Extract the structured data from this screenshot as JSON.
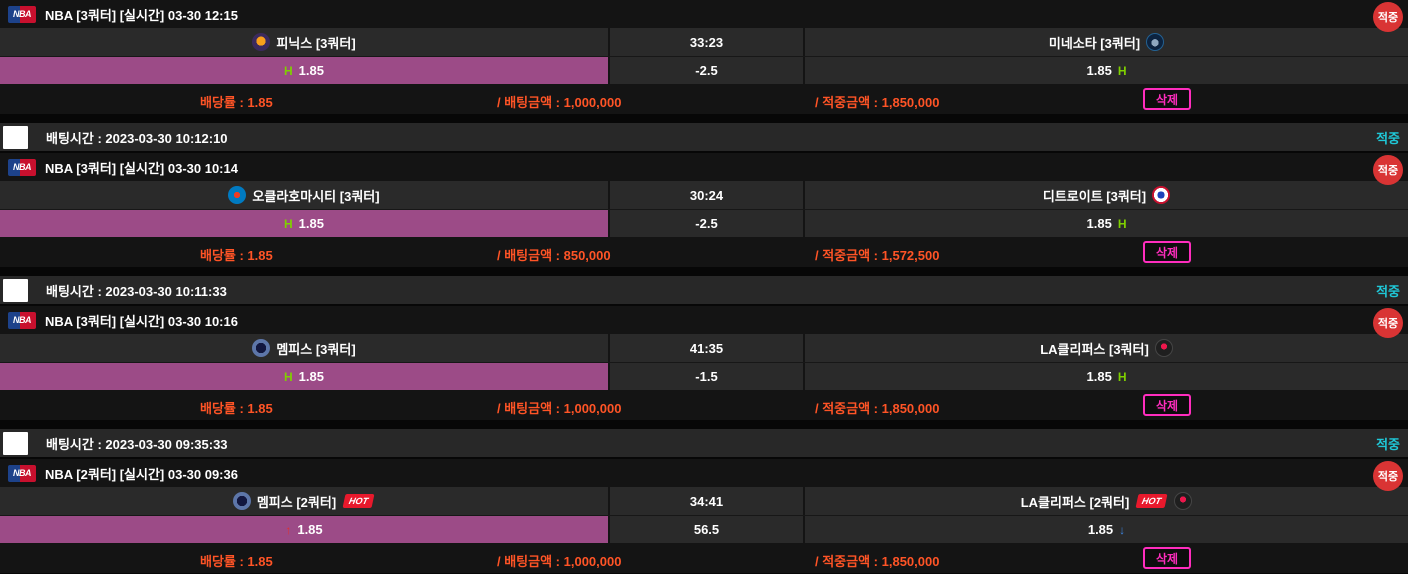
{
  "colors": {
    "purple_highlight": "#9c4b87",
    "orange_text": "#ff5426",
    "green_marker": "#7fd000",
    "cyan_status": "#1fc8d8",
    "red_badge": "#d93434",
    "magenta_delete": "#ff2dbe",
    "red_arrow": "#e03131",
    "blue_arrow": "#3d85e0"
  },
  "league_label": "NBA",
  "cards": [
    {
      "title": "NBA [3쿼터]  [실시간]  03-30 12:15",
      "status_badge": "적중",
      "home_name": "피닉스 [3쿼터]",
      "home_logo": "phoenix-suns-logo",
      "away_name": "미네소타 [3쿼터]",
      "away_logo": "minnesota-timberwolves-logo",
      "score": "33:23",
      "line": "-2.5",
      "home_marker": "H",
      "home_odds": "1.85",
      "away_odds": "1.85",
      "away_marker": "H",
      "footer_odds": "배당률 : 1.85",
      "footer_bet": "/ 배팅금액 : 1,000,000",
      "footer_win": "/ 적중금액 : 1,850,000",
      "delete_label": "삭제"
    },
    {
      "title": "NBA [3쿼터]  [실시간]  03-30 10:14",
      "status_badge": "적중",
      "home_name": "오클라호마시티 [3쿼터]",
      "home_logo": "oklahoma-city-thunder-logo",
      "away_name": "디트로이트 [3쿼터]",
      "away_logo": "detroit-pistons-logo",
      "score": "30:24",
      "line": "-2.5",
      "home_marker": "H",
      "home_odds": "1.85",
      "away_odds": "1.85",
      "away_marker": "H",
      "footer_odds": "배당률 : 1.85",
      "footer_bet": "/ 배팅금액 : 850,000",
      "footer_win": "/ 적중금액 : 1,572,500",
      "delete_label": "삭제"
    },
    {
      "title": "NBA [3쿼터]  [실시간]  03-30 10:16",
      "status_badge": "적중",
      "home_name": "멤피스 [3쿼터]",
      "home_logo": "memphis-grizzlies-logo",
      "away_name": "LA클리퍼스 [3쿼터]",
      "away_logo": "la-clippers-logo",
      "score": "41:35",
      "line": "-1.5",
      "home_marker": "H",
      "home_odds": "1.85",
      "away_odds": "1.85",
      "away_marker": "H",
      "footer_odds": "배당률 : 1.85",
      "footer_bet": "/ 배팅금액 : 1,000,000",
      "footer_win": "/ 적중금액 : 1,850,000",
      "delete_label": "삭제"
    },
    {
      "title": "NBA [2쿼터]  [실시간]  03-30 09:36",
      "status_badge": "적중",
      "home_name": "멤피스 [2쿼터]",
      "home_logo": "memphis-grizzlies-logo",
      "home_hot": "HOT",
      "away_name": "LA클리퍼스 [2쿼터]",
      "away_logo": "la-clippers-logo",
      "away_hot": "HOT",
      "score": "34:41",
      "line": "56.5",
      "home_marker": "↑",
      "home_odds": "1.85",
      "away_odds": "1.85",
      "away_marker": "↓",
      "footer_odds": "배당률 : 1.85",
      "footer_bet": "/ 배팅금액 : 1,000,000",
      "footer_win": "/ 적중금액 : 1,850,000",
      "delete_label": "삭제"
    }
  ],
  "time_rows": [
    {
      "label": "배팅시간 : 2023-03-30 10:12:10",
      "status": "적중"
    },
    {
      "label": "배팅시간 : 2023-03-30 10:11:33",
      "status": "적중"
    },
    {
      "label": "배팅시간 : 2023-03-30 09:35:33",
      "status": "적중"
    }
  ]
}
